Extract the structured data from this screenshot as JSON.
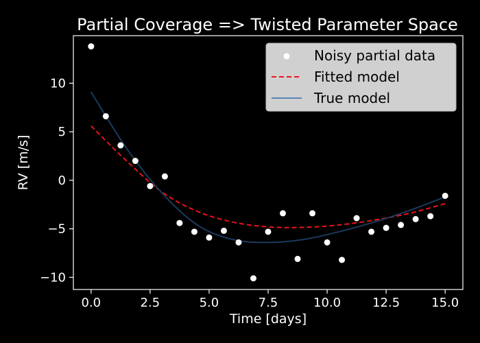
{
  "chart_data": {
    "type": "scatter",
    "title": "Partial Coverage => Twisted Parameter Space",
    "xlabel": "Time [days]",
    "ylabel": "RV [m/s]",
    "xlim": [
      -0.75,
      15.75
    ],
    "ylim": [
      -11.25,
      14.9
    ],
    "x_ticks": [
      0.0,
      2.5,
      5.0,
      7.5,
      10.0,
      12.5,
      15.0
    ],
    "x_tick_labels": [
      "0.0",
      "2.5",
      "5.0",
      "7.5",
      "10.0",
      "12.5",
      "15.0"
    ],
    "y_ticks": [
      -10,
      -5,
      0,
      5,
      10
    ],
    "y_tick_labels": [
      "−10",
      "−5",
      "0",
      "5",
      "10"
    ],
    "grid": false,
    "legend_position": "top-right",
    "series": [
      {
        "name": "Noisy partial data",
        "type": "scatter",
        "color": "#ffffff",
        "x": [
          0.0,
          0.625,
          1.25,
          1.875,
          2.5,
          3.125,
          3.75,
          4.375,
          5.0,
          5.625,
          6.25,
          6.875,
          7.5,
          8.125,
          8.75,
          9.375,
          10.0,
          10.625,
          11.25,
          11.875,
          12.5,
          13.125,
          13.75,
          14.375,
          15.0
        ],
        "y": [
          13.8,
          6.6,
          3.6,
          2.0,
          -0.6,
          0.4,
          -4.4,
          -5.3,
          -5.9,
          -5.2,
          -6.4,
          -10.1,
          -5.3,
          -3.4,
          -8.1,
          -3.4,
          -6.4,
          -8.2,
          -3.9,
          -5.3,
          -4.9,
          -4.6,
          -4.0,
          -3.7,
          -1.6
        ]
      },
      {
        "name": "Fitted model",
        "type": "line",
        "color": "#e8141b",
        "dash": "dashed",
        "x": [
          0.0,
          1.5,
          3.0,
          4.5,
          6.0,
          7.5,
          9.0,
          10.5,
          12.0,
          13.5,
          15.0
        ],
        "y": [
          5.6,
          2.0,
          -1.2,
          -3.2,
          -4.3,
          -4.8,
          -4.85,
          -4.6,
          -4.1,
          -3.4,
          -2.4
        ]
      },
      {
        "name": "True model",
        "type": "line",
        "color": "#1b3a5c",
        "legend_color": "#5a84b8",
        "dash": "solid",
        "x": [
          0.0,
          1.5,
          3.0,
          4.5,
          6.0,
          7.5,
          9.0,
          10.5,
          12.0,
          13.5,
          15.0
        ],
        "y": [
          9.1,
          3.3,
          -1.3,
          -4.6,
          -6.1,
          -6.4,
          -6.1,
          -5.3,
          -4.3,
          -3.1,
          -1.7
        ]
      }
    ]
  }
}
